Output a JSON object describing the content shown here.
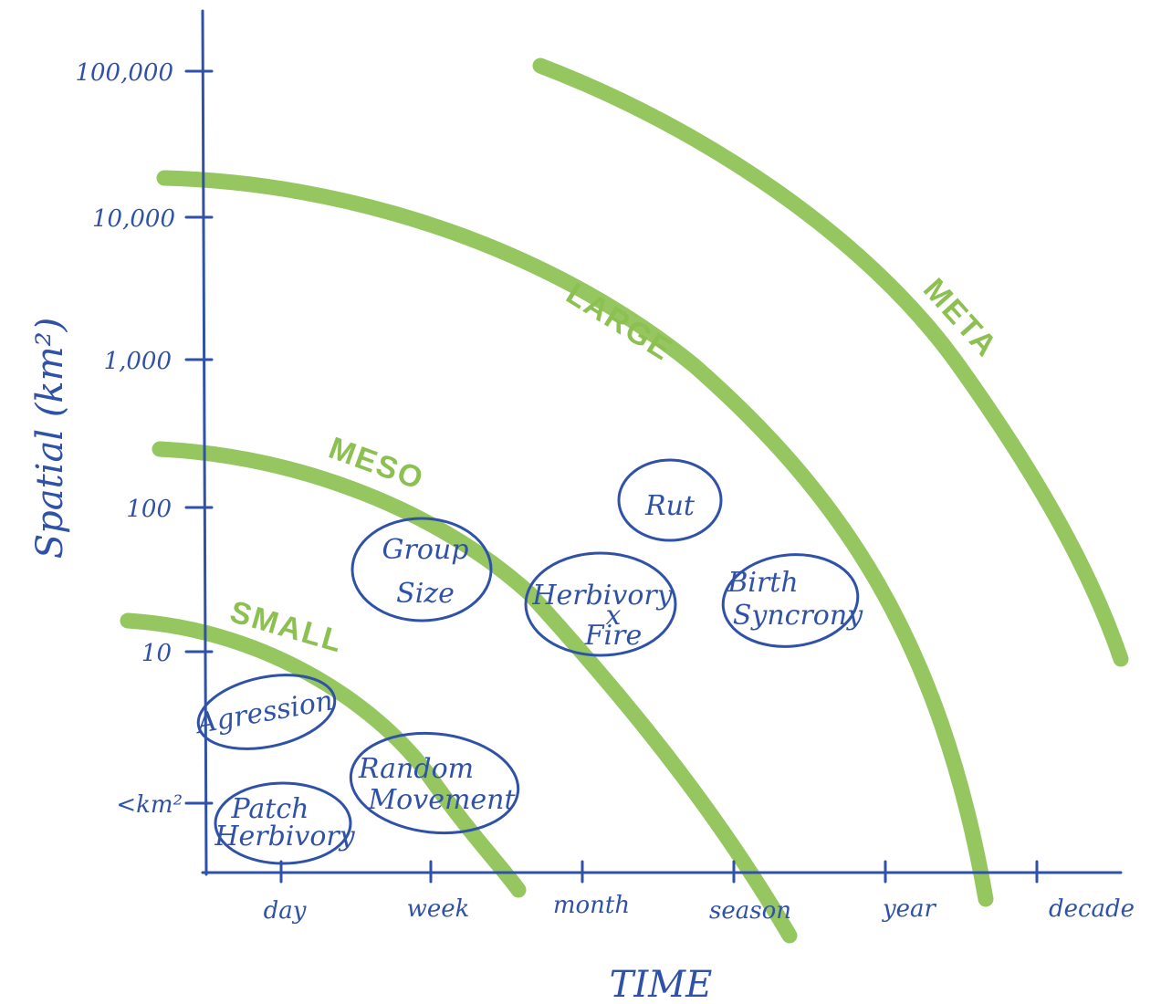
{
  "axes": {
    "y_label": "Spatial (km²)",
    "x_label": "TIME",
    "y_ticks": [
      "100,000",
      "10,000",
      "1,000",
      "100",
      "10",
      "<km²"
    ],
    "x_ticks": [
      "day",
      "week",
      "month",
      "season",
      "year",
      "decade"
    ]
  },
  "scales": {
    "small": "SMALL",
    "meso": "MESO",
    "large": "LARGE",
    "meta": "META"
  },
  "processes": {
    "agression": "Agression",
    "patch_herbivory": [
      "Patch",
      "Herbivory"
    ],
    "random_movement": [
      "Random",
      "Movement"
    ],
    "group_size": [
      "Group",
      "Size"
    ],
    "herbivory_fire": [
      "Herbivory",
      "x",
      "Fire"
    ],
    "rut": "Rut",
    "birth_syncrony": [
      "Birth",
      "Syncrony"
    ]
  },
  "colors": {
    "ink": "#2f52a8",
    "highlighter": "#8cc152"
  }
}
